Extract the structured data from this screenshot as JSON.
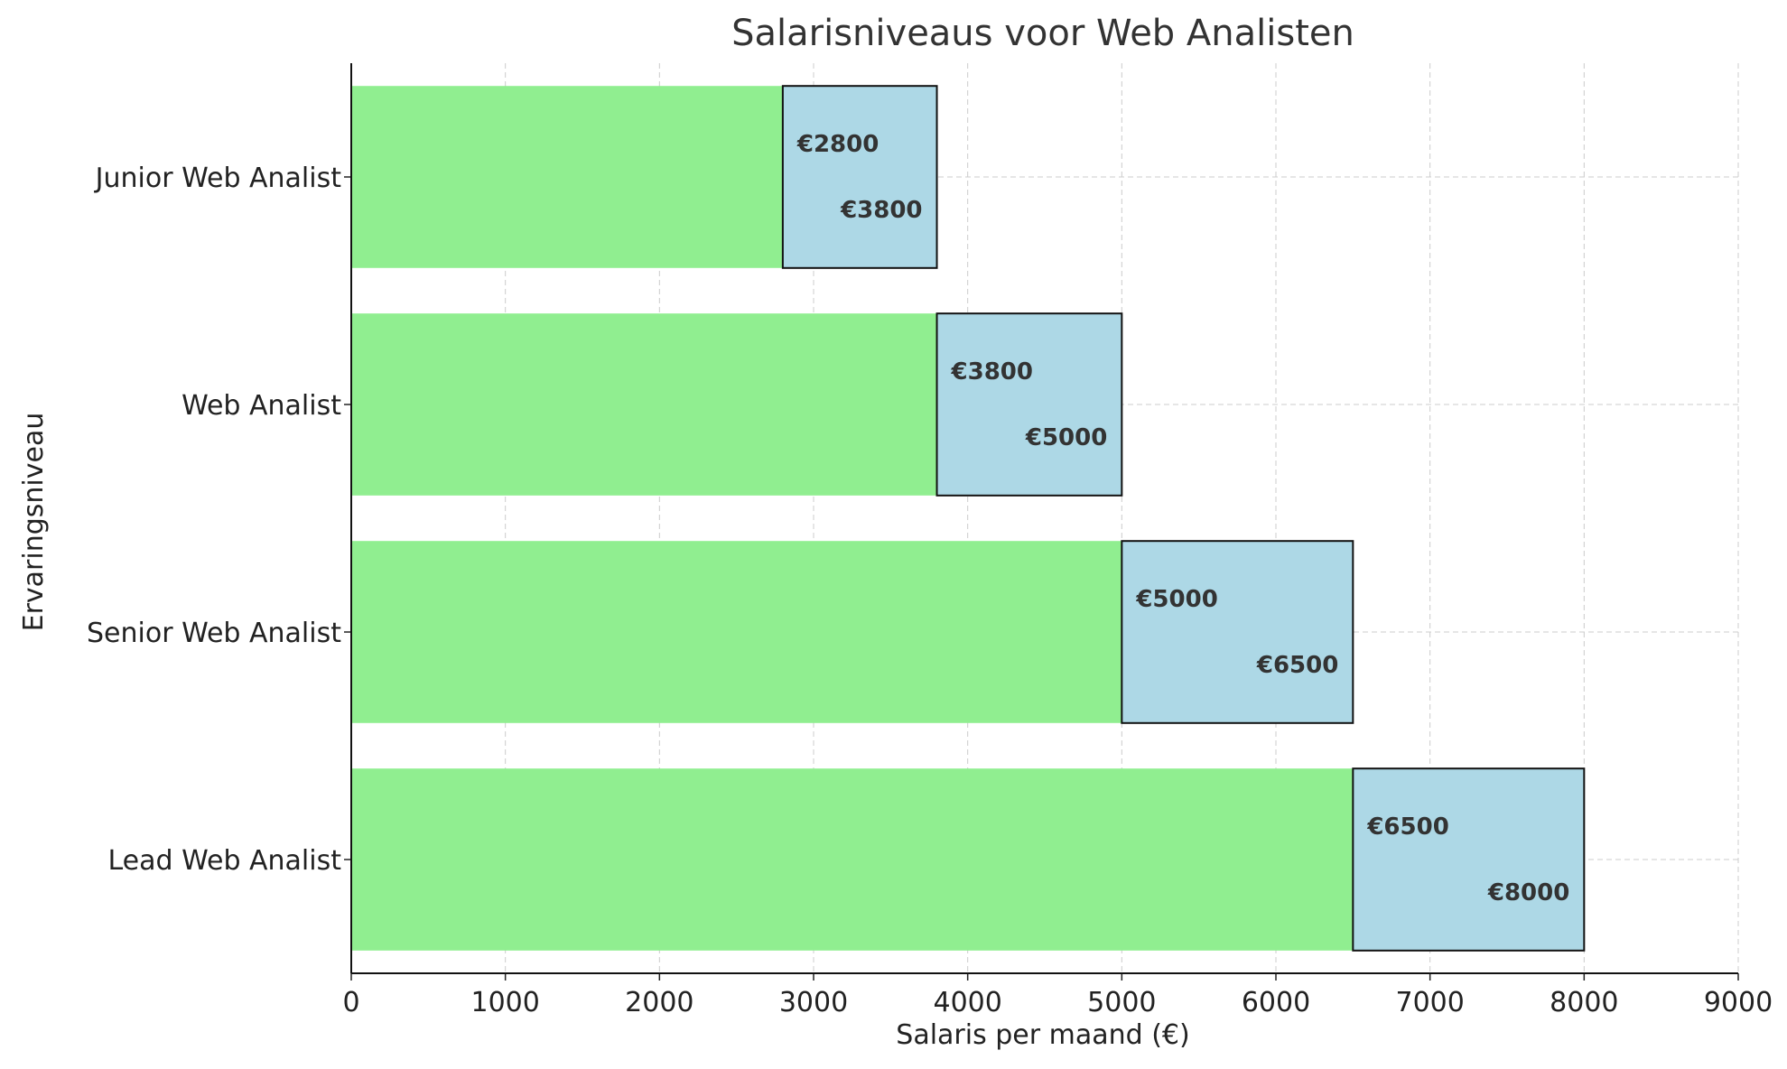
{
  "chart_data": {
    "type": "bar",
    "orientation": "horizontal",
    "stacked": true,
    "title": "Salarisniveaus voor Web Analisten",
    "xlabel": "Salaris per maand (€)",
    "ylabel": "Ervaringsniveau",
    "xlim": [
      0,
      9000
    ],
    "xticks": [
      "0",
      "1000",
      "2000",
      "3000",
      "4000",
      "5000",
      "6000",
      "7000",
      "8000",
      "9000"
    ],
    "grid": true,
    "categories": [
      "Junior Web Analist",
      "Web Analist",
      "Senior Web Analist",
      "Lead Web Analist"
    ],
    "series": [
      {
        "values": [
          2800,
          3800,
          5000,
          6500
        ],
        "color": "#90ee90"
      },
      {
        "values": [
          1000,
          1200,
          1500,
          1500
        ],
        "color": "#add8e6"
      }
    ],
    "min_labels": [
      "€2800",
      "€3800",
      "€5000",
      "€6500"
    ],
    "max_labels": [
      "€3800",
      "€5000",
      "€6500",
      "€8000"
    ],
    "colors": {
      "min_bar": "#90ee90",
      "range_bar": "#add8e6",
      "grid": "#cccccc",
      "text": "#333333"
    }
  }
}
